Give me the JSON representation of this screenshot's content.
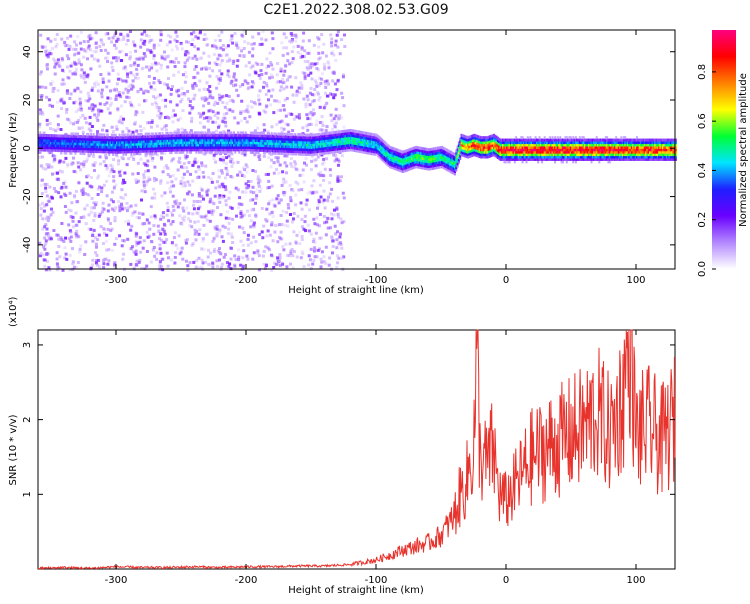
{
  "title": "C2E1.2022.308.02.53.G09",
  "colors": {
    "snr_line": "#e8322c",
    "colormap": [
      "#ffffff",
      "#b388ff",
      "#6a00ff",
      "#1f1fff",
      "#00e5ff",
      "#00ff33",
      "#ffff00",
      "#ff8000",
      "#ff0000",
      "#ff0080"
    ]
  },
  "chart_data": [
    {
      "type": "heatmap",
      "xlabel": "Height of straight line (km)",
      "ylabel": "Frequency (Hz)",
      "xlim": [
        -360,
        130
      ],
      "ylim": [
        -50,
        49
      ],
      "xticks": [
        -300,
        -200,
        -100,
        0,
        100
      ],
      "xtick_labels": [
        "-300",
        "-200",
        "-100",
        "0",
        "100"
      ],
      "yticks": [
        -40,
        -20,
        0,
        20,
        40
      ],
      "ytick_labels": [
        "-40",
        "-20",
        "0",
        "20",
        "40"
      ],
      "colorbar": {
        "label": "Normalized spectral amplitude",
        "range": [
          0,
          0.97
        ],
        "ticks": [
          0.0,
          0.2,
          0.4,
          0.6,
          0.8
        ],
        "tick_labels": [
          "0.0",
          "0.2",
          "0.4",
          "0.6",
          "0.8"
        ]
      },
      "signal_track": {
        "x": [
          -360,
          -300,
          -250,
          -200,
          -150,
          -120,
          -100,
          -90,
          -80,
          -70,
          -60,
          -50,
          -40,
          -35,
          -30,
          -25,
          -20,
          -15,
          -10,
          -5,
          0,
          20,
          50,
          80,
          100,
          130
        ],
        "frequency": [
          3,
          2,
          3,
          3,
          2,
          4,
          2,
          -3,
          -5,
          -3,
          -4,
          -3,
          -6,
          2,
          1,
          2,
          1,
          1,
          2,
          0,
          0,
          0,
          0,
          0,
          0,
          0
        ],
        "amplitude": [
          0.35,
          0.4,
          0.42,
          0.4,
          0.45,
          0.5,
          0.45,
          0.5,
          0.5,
          0.55,
          0.55,
          0.5,
          0.5,
          0.7,
          0.75,
          0.8,
          0.8,
          0.85,
          0.8,
          0.85,
          0.9,
          0.92,
          0.9,
          0.9,
          0.85,
          0.85
        ]
      },
      "noise_region_xlim": [
        -360,
        -125
      ]
    },
    {
      "type": "line",
      "xlabel": "Height of straight line (km)",
      "ylabel": "SNR (10 * v/v)",
      "yscale_label": "(x10⁴)",
      "xlim": [
        -360,
        130
      ],
      "ylim": [
        0,
        3.2
      ],
      "xticks": [
        -300,
        -200,
        -100,
        0,
        100
      ],
      "xtick_labels": [
        "-300",
        "-200",
        "-100",
        "0",
        "100"
      ],
      "yticks": [
        1,
        2,
        3
      ],
      "ytick_labels": [
        "1",
        "2",
        "3"
      ],
      "series": [
        {
          "x": [
            -360,
            -340,
            -320,
            -300,
            -280,
            -260,
            -240,
            -220,
            -200,
            -180,
            -160,
            -140,
            -120,
            -100,
            -90,
            -80,
            -70,
            -60,
            -50,
            -40,
            -35,
            -30,
            -25,
            -22,
            -20,
            -15,
            -10,
            -5,
            0,
            10,
            20,
            30,
            40,
            50,
            60,
            70,
            80,
            90,
            95,
            100,
            110,
            120,
            130
          ],
          "y": [
            0.01,
            0.02,
            0.01,
            0.03,
            0.02,
            0.02,
            0.03,
            0.02,
            0.03,
            0.03,
            0.04,
            0.04,
            0.06,
            0.12,
            0.18,
            0.25,
            0.3,
            0.35,
            0.45,
            0.7,
            1.0,
            1.2,
            1.6,
            2.9,
            1.5,
            1.4,
            1.6,
            1.0,
            0.9,
            1.2,
            1.5,
            1.6,
            1.7,
            1.8,
            1.9,
            2.1,
            1.8,
            2.3,
            3.2,
            1.8,
            1.9,
            1.7,
            2.0
          ],
          "color": "#e8322c"
        }
      ]
    }
  ]
}
